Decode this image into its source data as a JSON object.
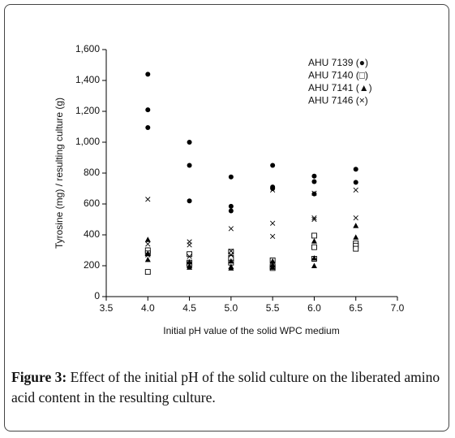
{
  "chart_data": {
    "type": "scatter",
    "x_label": "Initial pH value of the solid WPC medium",
    "y_label": "Tyrosine (mg) / resulting culture (g)",
    "xlim": [
      3.5,
      7.0
    ],
    "xticks": [
      {
        "value": 3.5,
        "label": "3.5"
      },
      {
        "value": 4.0,
        "label": "4.0"
      },
      {
        "value": 4.5,
        "label": "4.5"
      },
      {
        "value": 5.0,
        "label": "5.0"
      },
      {
        "value": 5.5,
        "label": "5.5"
      },
      {
        "value": 6.0,
        "label": "6.0"
      },
      {
        "value": 6.5,
        "label": "6.5"
      },
      {
        "value": 7.0,
        "label": "7.0"
      }
    ],
    "ylim": [
      0,
      1600
    ],
    "yticks": [
      0,
      200,
      400,
      600,
      800,
      {
        "value": 1000,
        "label": "1,000"
      },
      {
        "value": 1200,
        "label": "1,200"
      },
      {
        "value": 1400,
        "label": "1,400"
      },
      {
        "value": 1600,
        "label": "1,600"
      }
    ],
    "grid": false,
    "series": [
      {
        "name": "AHU 7139 (●)",
        "color": "#000000",
        "marker": "circle",
        "x": [
          4.0,
          4.0,
          4.0,
          4.5,
          4.5,
          4.5,
          5.0,
          5.0,
          5.0,
          5.5,
          5.5,
          5.5,
          6.0,
          6.0,
          6.0,
          6.5,
          6.5
        ],
        "values": [
          1440,
          1210,
          1095,
          1000,
          850,
          620,
          775,
          585,
          555,
          850,
          710,
          700,
          780,
          745,
          665,
          825,
          740
        ]
      },
      {
        "name": "AHU 7140 (□)",
        "color": "#000000",
        "marker": "square",
        "x": [
          4.0,
          4.0,
          4.0,
          4.5,
          4.5,
          4.5,
          5.0,
          5.0,
          5.0,
          5.5,
          5.5,
          5.5,
          6.0,
          6.0,
          6.0,
          6.5,
          6.5,
          6.5
        ],
        "values": [
          300,
          280,
          160,
          275,
          220,
          210,
          290,
          250,
          220,
          235,
          195,
          185,
          395,
          320,
          245,
          345,
          330,
          310
        ]
      },
      {
        "name": "AHU 7141 (▲)",
        "color": "#000000",
        "marker": "triangle",
        "x": [
          4.0,
          4.0,
          4.0,
          4.5,
          4.5,
          4.5,
          5.0,
          5.0,
          5.0,
          5.5,
          5.5,
          5.5,
          6.0,
          6.0,
          6.0,
          6.5,
          6.5
        ],
        "values": [
          370,
          280,
          240,
          225,
          200,
          190,
          230,
          195,
          185,
          230,
          205,
          190,
          360,
          250,
          200,
          460,
          385
        ]
      },
      {
        "name": "AHU 7146 (×)",
        "color": "#000000",
        "marker": "x",
        "x": [
          4.0,
          4.0,
          4.0,
          4.5,
          4.5,
          4.5,
          5.0,
          5.0,
          5.0,
          5.5,
          5.5,
          5.5,
          6.0,
          6.0,
          6.0,
          6.5,
          6.5
        ],
        "values": [
          630,
          340,
          270,
          355,
          335,
          260,
          440,
          295,
          270,
          690,
          475,
          390,
          670,
          510,
          500,
          690,
          510
        ]
      }
    ]
  },
  "caption": {
    "label": "Figure 3:",
    "text": "Effect of the initial pH of the solid culture on the liberated amino acid content in the resulting culture."
  }
}
